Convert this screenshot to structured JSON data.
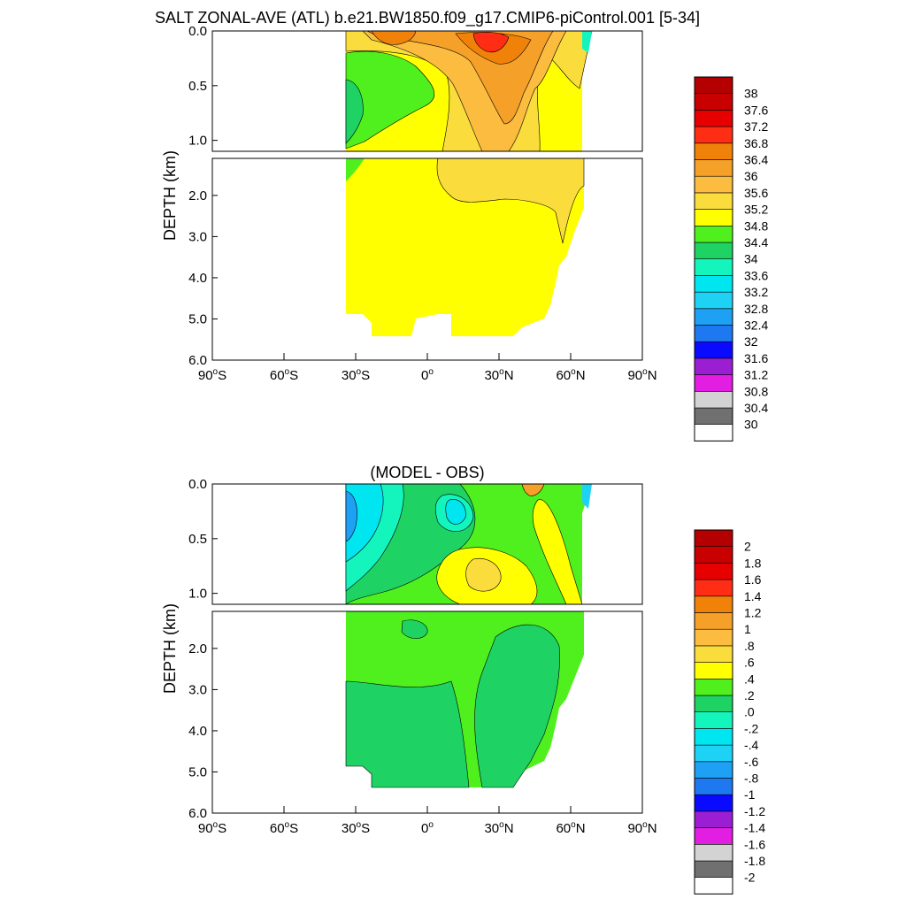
{
  "figure": {
    "title": "SALT ZONAL-AVE (ATL) b.e21.BW1850.f09_g17.CMIP6-piControl.001 [5-34]"
  },
  "chart_data": [
    {
      "type": "heatmap",
      "panel": "model",
      "title": "",
      "xlabel": "",
      "ylabel": "DEPTH (km)",
      "x_range": [
        -90,
        90
      ],
      "x_ticks": [
        "90°S",
        "60°S",
        "30°S",
        "0°",
        "30°N",
        "60°N",
        "90°N"
      ],
      "y_range_km": [
        0,
        6
      ],
      "y_ticks_upper": [
        "0.0",
        "0.5",
        "1.0"
      ],
      "y_ticks_lower": [
        "2.0",
        "3.0",
        "4.0",
        "5.0",
        "6.0"
      ],
      "y_break_km": 1.1,
      "data_extent_lat": [
        -34,
        66
      ],
      "colorbar": {
        "levels": [
          "30",
          "30.4",
          "30.8",
          "31.2",
          "31.6",
          "32",
          "32.4",
          "32.8",
          "33.2",
          "33.6",
          "34",
          "34.4",
          "34.8",
          "35.2",
          "35.6",
          "36",
          "36.4",
          "36.8",
          "37.2",
          "37.6",
          "38"
        ],
        "colors": [
          "#ffffff",
          "#707070",
          "#d3d3d3",
          "#e11ee1",
          "#9b1ed2",
          "#0a0aff",
          "#1e78f0",
          "#1ea0f5",
          "#1ed2f5",
          "#00e6f0",
          "#14f5be",
          "#1ed264",
          "#50f01e",
          "#ffff00",
          "#fadc3c",
          "#fbbc40",
          "#f5a028",
          "#f0820a",
          "#ff2d14",
          "#e60000",
          "#c80000",
          "#b40000"
        ]
      },
      "fields": {
        "surface": [
          {
            "lat": -34,
            "value": 35.4
          },
          {
            "lat": -25,
            "value": 35.6
          },
          {
            "lat": -15,
            "value": 36.1
          },
          {
            "lat": -5,
            "value": 36.0
          },
          {
            "lat": 5,
            "value": 35.8
          },
          {
            "lat": 15,
            "value": 36.4
          },
          {
            "lat": 25,
            "value": 37.3
          },
          {
            "lat": 35,
            "value": 36.6
          },
          {
            "lat": 45,
            "value": 35.8
          },
          {
            "lat": 55,
            "value": 35.2
          },
          {
            "lat": 65,
            "value": 34.6
          }
        ],
        "thermocline": "34.4–35.2 south of the equator, 35.2–36.4 in the subtropical north",
        "deep": "34.8–35.2 throughout, 35.2–35.6 north of 10°N above 1.5 km"
      }
    },
    {
      "type": "heatmap",
      "panel": "difference",
      "title": "(MODEL - OBS)",
      "xlabel": "",
      "ylabel": "DEPTH (km)",
      "x_range": [
        -90,
        90
      ],
      "x_ticks": [
        "90°S",
        "60°S",
        "30°S",
        "0°",
        "30°N",
        "60°N",
        "90°N"
      ],
      "y_range_km": [
        0,
        6
      ],
      "y_ticks_upper": [
        "0.0",
        "0.5",
        "1.0"
      ],
      "y_ticks_lower": [
        "2.0",
        "3.0",
        "4.0",
        "5.0",
        "6.0"
      ],
      "y_break_km": 1.1,
      "data_extent_lat": [
        -34,
        66
      ],
      "colorbar": {
        "levels": [
          "-2",
          "-1.8",
          "-1.6",
          "-1.4",
          "-1.2",
          "-1",
          "-.8",
          "-.6",
          "-.4",
          "-.2",
          ".0",
          ".2",
          ".4",
          ".6",
          ".8",
          "1",
          "1.2",
          "1.4",
          "1.6",
          "1.8",
          "2"
        ],
        "colors": [
          "#ffffff",
          "#707070",
          "#d3d3d3",
          "#e11ee1",
          "#9b1ed2",
          "#0a0aff",
          "#1e78f0",
          "#1ea0f5",
          "#1ed2f5",
          "#00e6f0",
          "#14f5be",
          "#1ed264",
          "#50f01e",
          "#ffff00",
          "#fadc3c",
          "#fbbc40",
          "#f5a028",
          "#f0820a",
          "#ff2d14",
          "#e60000",
          "#c80000",
          "#b40000"
        ]
      },
      "fields": {
        "surface": "-0.8 to -0.2 near 30°S, up to 1.2 near 42°N",
        "thermocline": "0.2–0.4 broadly, 0.6–0.8 patch near 15°N at 0.8 km",
        "deep": "0.0–0.2 throughout"
      }
    }
  ]
}
